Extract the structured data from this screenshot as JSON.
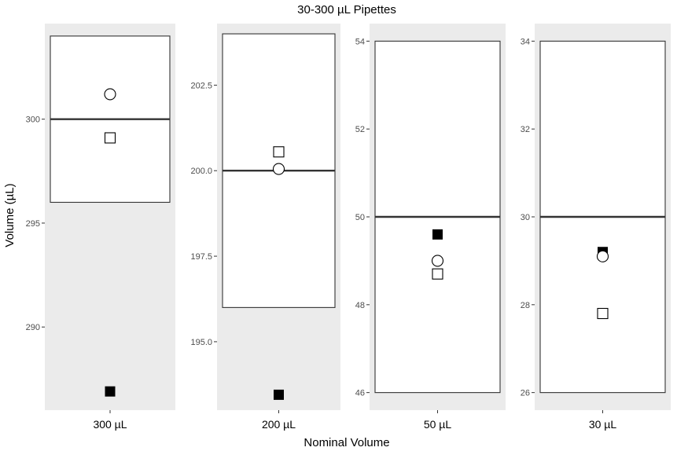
{
  "chart_data": {
    "type": "scatter",
    "title": "30-300 µL Pipettes",
    "xlabel": "Nominal Volume",
    "ylabel": "Volume (µL)",
    "colors": {
      "panel_background": "#ebebeb",
      "tolerance_box_fill": "#ffffff",
      "line": "#333333",
      "filled_marker": "#000000",
      "open_marker_fill": "#ffffff"
    },
    "panels": [
      {
        "category": "300 µL",
        "nominal": 300,
        "ylim": [
          286.0,
          304.6
        ],
        "ticks": [
          290,
          295,
          300
        ],
        "tick_labels": [
          "290",
          "295",
          "300"
        ],
        "tolerance_box": [
          296,
          304
        ],
        "points": [
          {
            "shape": "circle-open",
            "value": 301.2
          },
          {
            "shape": "square-open",
            "value": 299.1
          },
          {
            "shape": "square-filled",
            "value": 286.9
          }
        ]
      },
      {
        "category": "200 µL",
        "nominal": 200,
        "ylim": [
          193.0,
          204.3
        ],
        "ticks": [
          195.0,
          197.5,
          200.0,
          202.5
        ],
        "tick_labels": [
          "195.0",
          "197.5",
          "200.0",
          "202.5"
        ],
        "tolerance_box": [
          196,
          204
        ],
        "points": [
          {
            "shape": "square-open",
            "value": 200.55
          },
          {
            "shape": "circle-open",
            "value": 200.05
          },
          {
            "shape": "square-filled",
            "value": 193.45
          }
        ]
      },
      {
        "category": "50 µL",
        "nominal": 50,
        "ylim": [
          45.6,
          54.4
        ],
        "ticks": [
          46,
          48,
          50,
          52,
          54
        ],
        "tick_labels": [
          "46",
          "48",
          "50",
          "52",
          "54"
        ],
        "tolerance_box": [
          46,
          54
        ],
        "points": [
          {
            "shape": "square-filled",
            "value": 49.6
          },
          {
            "shape": "circle-open",
            "value": 49.0
          },
          {
            "shape": "square-open",
            "value": 48.7
          }
        ]
      },
      {
        "category": "30 µL",
        "nominal": 30,
        "ylim": [
          25.6,
          34.4
        ],
        "ticks": [
          26,
          28,
          30,
          32,
          34
        ],
        "tick_labels": [
          "26",
          "28",
          "30",
          "32",
          "34"
        ],
        "tolerance_box": [
          26,
          34
        ],
        "points": [
          {
            "shape": "square-filled",
            "value": 29.2
          },
          {
            "shape": "circle-open",
            "value": 29.1
          },
          {
            "shape": "square-open",
            "value": 27.8
          }
        ]
      }
    ]
  }
}
